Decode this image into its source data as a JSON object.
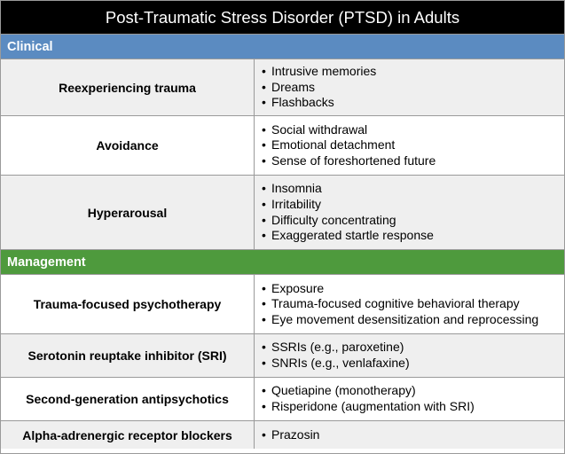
{
  "title": "Post-Traumatic Stress Disorder (PTSD) in Adults",
  "sections": [
    {
      "label": "Clinical",
      "rows": [
        {
          "label": "Reexperiencing trauma",
          "items": [
            "Intrusive memories",
            "Dreams",
            "Flashbacks"
          ]
        },
        {
          "label": "Avoidance",
          "items": [
            "Social withdrawal",
            "Emotional detachment",
            "Sense of foreshortened future"
          ]
        },
        {
          "label": "Hyperarousal",
          "items": [
            "Insomnia",
            "Irritability",
            "Difficulty concentrating",
            "Exaggerated startle response"
          ]
        }
      ]
    },
    {
      "label": "Management",
      "rows": [
        {
          "label": "Trauma-focused psychotherapy",
          "items": [
            "Exposure",
            "Trauma-focused cognitive behavioral therapy",
            "Eye movement desensitization and reprocessing"
          ]
        },
        {
          "label": "Serotonin reuptake inhibitor (SRI)",
          "items": [
            "SSRIs (e.g., paroxetine)",
            "SNRIs (e.g., venlafaxine)"
          ]
        },
        {
          "label": "Second-generation antipsychotics",
          "items": [
            "Quetiapine (monotherapy)",
            "Risperidone (augmentation with SRI)"
          ]
        },
        {
          "label": "Alpha-adrenergic receptor blockers",
          "items": [
            "Prazosin"
          ]
        }
      ]
    }
  ],
  "bullet_glyph": "•",
  "colors": {
    "title_bg": "#000000",
    "clinical_header": "#5b8bc1",
    "management_header": "#4e9a3d",
    "shaded_row": "#efefef",
    "border": "#9a9a9a"
  }
}
